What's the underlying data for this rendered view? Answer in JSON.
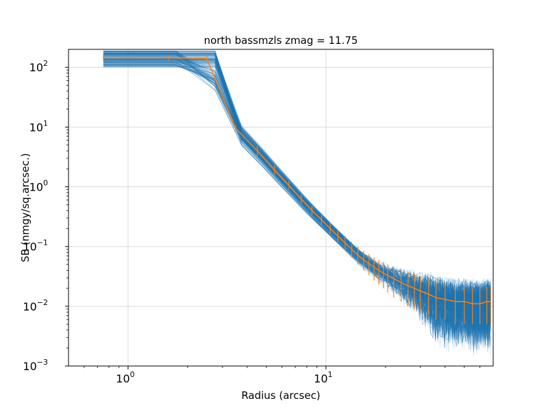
{
  "chart_data": {
    "type": "line",
    "title": "north bassmzls zmag = 11.75",
    "xlabel": "Radius (arcsec)",
    "ylabel": "SB (nmgy/sq.arcsec.)",
    "xscale": "log",
    "yscale": "log",
    "xlim": [
      0.5,
      70
    ],
    "ylim": [
      0.001,
      200
    ],
    "grid": true,
    "x_ticks": [
      {
        "value": 1,
        "base": "10",
        "exp": "0"
      },
      {
        "value": 10,
        "base": "10",
        "exp": "1"
      }
    ],
    "y_ticks": [
      {
        "value": 0.001,
        "base": "10",
        "exp": "−3"
      },
      {
        "value": 0.01,
        "base": "10",
        "exp": "−2"
      },
      {
        "value": 0.1,
        "base": "10",
        "exp": "−1"
      },
      {
        "value": 1,
        "base": "10",
        "exp": "0"
      },
      {
        "value": 10,
        "base": "10",
        "exp": "1"
      },
      {
        "value": 100,
        "base": "10",
        "exp": "2"
      }
    ],
    "colors": {
      "individual_profiles": "#1f77b4",
      "median_profile": "#ff7f0e",
      "grid": "#d9d9d9"
    },
    "series": [
      {
        "style": "many faint individual profiles (blue)",
        "count_approx": 150
      },
      {
        "style": "median profile with error bars (orange)",
        "x": [
          0.75,
          1.6,
          2.5,
          3.5,
          4.5,
          5.5,
          6.5,
          7.5,
          8.5,
          9.5,
          10.5,
          11.5,
          12.5,
          13.5,
          14.5,
          15.5,
          16.5,
          17.5,
          18.5,
          19.5,
          20.5,
          22,
          24,
          26,
          28,
          30,
          33,
          36,
          40,
          45,
          50,
          55,
          60,
          65,
          68
        ],
        "y": [
          145,
          145,
          140,
          9.5,
          4.0,
          1.9,
          1.05,
          0.62,
          0.4,
          0.28,
          0.2,
          0.15,
          0.115,
          0.09,
          0.072,
          0.06,
          0.052,
          0.045,
          0.04,
          0.036,
          0.033,
          0.029,
          0.025,
          0.022,
          0.02,
          0.018,
          0.016,
          0.014,
          0.013,
          0.012,
          0.012,
          0.011,
          0.011,
          0.012,
          0.012
        ],
        "err_lo": [
          130,
          130,
          125,
          8.5,
          3.3,
          1.6,
          0.9,
          0.52,
          0.34,
          0.23,
          0.16,
          0.12,
          0.088,
          0.066,
          0.05,
          0.04,
          0.033,
          0.027,
          0.023,
          0.02,
          0.017,
          0.014,
          0.012,
          0.01,
          0.009,
          0.008,
          0.007,
          0.006,
          0.006,
          0.005,
          0.005,
          0.005,
          0.005,
          0.005,
          0.005
        ],
        "err_hi": [
          160,
          160,
          155,
          10.5,
          4.8,
          2.3,
          1.25,
          0.74,
          0.48,
          0.34,
          0.25,
          0.19,
          0.15,
          0.12,
          0.1,
          0.085,
          0.075,
          0.066,
          0.06,
          0.055,
          0.05,
          0.046,
          0.042,
          0.038,
          0.035,
          0.032,
          0.029,
          0.026,
          0.024,
          0.022,
          0.021,
          0.02,
          0.02,
          0.021,
          0.021
        ]
      }
    ]
  }
}
